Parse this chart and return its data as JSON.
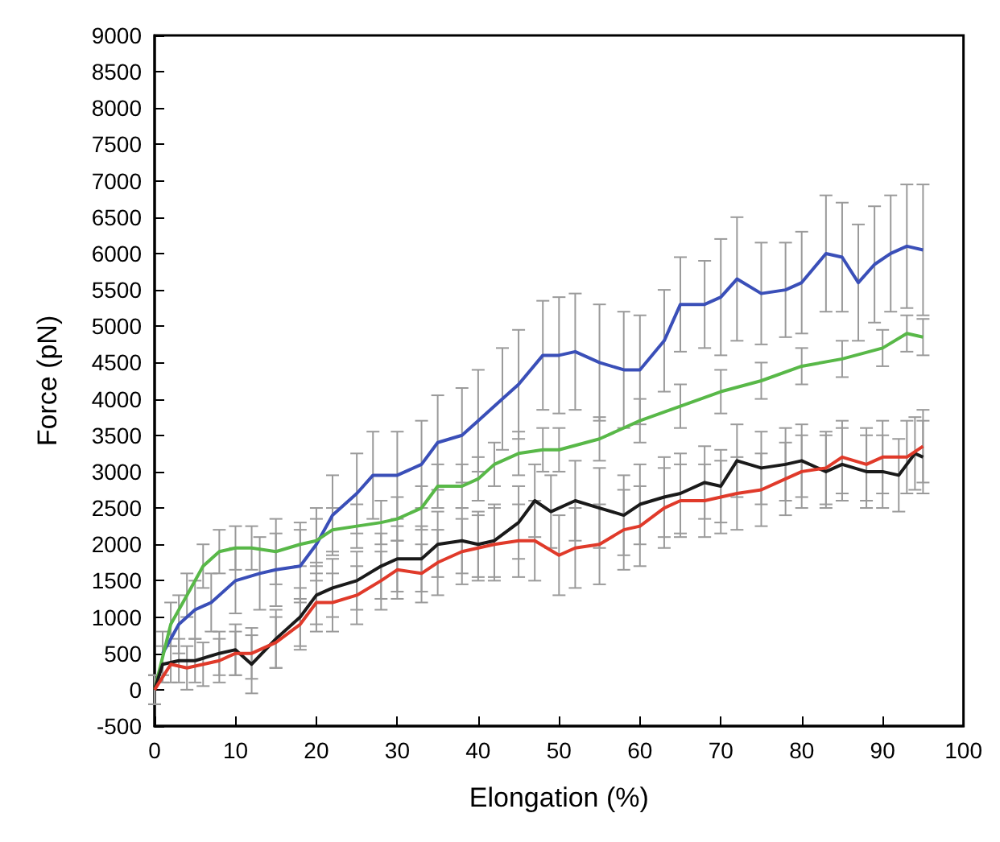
{
  "chart_data": {
    "type": "line",
    "xlabel": "Elongation (%)",
    "ylabel": "Force (pN)",
    "xlim": [
      0,
      100
    ],
    "ylim": [
      -500,
      9000
    ],
    "xticks": [
      0,
      10,
      20,
      30,
      40,
      50,
      60,
      70,
      80,
      90,
      100
    ],
    "yticks": [
      -500,
      0,
      500,
      1000,
      1500,
      2000,
      2500,
      3000,
      3500,
      4000,
      4500,
      5000,
      5500,
      6000,
      6500,
      7000,
      7500,
      8000,
      8500,
      9000
    ],
    "grid": false,
    "marker": "none",
    "line_style": "solid",
    "series": [
      {
        "color": "#3a4fb8",
        "x": [
          1,
          3,
          5,
          7,
          10,
          13,
          15,
          18,
          20,
          22,
          25,
          27,
          30,
          33,
          35,
          38,
          40,
          43,
          45,
          48,
          50,
          52,
          55,
          58,
          60,
          63,
          65,
          68,
          70,
          72,
          75,
          78,
          80,
          83,
          85,
          87,
          89,
          91,
          93,
          95
        ],
        "values": [
          500,
          900,
          1100,
          1200,
          1500,
          1600,
          1650,
          1700,
          2000,
          2400,
          2700,
          2950,
          2950,
          3100,
          3400,
          3500,
          3700,
          4000,
          4200,
          4600,
          4600,
          4650,
          4500,
          4400,
          4400,
          4800,
          5300,
          5300,
          5400,
          5650,
          5450,
          5500,
          5600,
          6000,
          5950,
          5600,
          5850,
          6000,
          6100,
          6050
        ],
        "errors": [
          300,
          400,
          400,
          400,
          450,
          500,
          500,
          500,
          500,
          550,
          550,
          600,
          600,
          600,
          650,
          650,
          700,
          700,
          750,
          750,
          800,
          800,
          800,
          800,
          750,
          700,
          650,
          600,
          800,
          850,
          700,
          650,
          700,
          800,
          750,
          800,
          800,
          800,
          850,
          900
        ]
      },
      {
        "color": "#58b848",
        "x": [
          0,
          2,
          4,
          6,
          8,
          10,
          12,
          15,
          18,
          20,
          22,
          25,
          28,
          30,
          33,
          35,
          38,
          40,
          42,
          45,
          48,
          50,
          55,
          60,
          65,
          70,
          75,
          80,
          85,
          90,
          93,
          95
        ],
        "values": [
          0,
          900,
          1300,
          1700,
          1900,
          1950,
          1950,
          1900,
          2000,
          2050,
          2200,
          2250,
          2300,
          2350,
          2500,
          2800,
          2800,
          2900,
          3100,
          3250,
          3300,
          3300,
          3450,
          3700,
          3900,
          4100,
          4250,
          4450,
          4550,
          4700,
          4900,
          4850
        ],
        "errors": [
          200,
          300,
          300,
          300,
          300,
          300,
          300,
          450,
          300,
          300,
          300,
          300,
          300,
          300,
          300,
          300,
          300,
          300,
          300,
          300,
          300,
          300,
          300,
          300,
          300,
          300,
          250,
          250,
          250,
          250,
          250,
          250
        ]
      },
      {
        "color": "#1a1a1a",
        "x": [
          0,
          1,
          3,
          5,
          8,
          10,
          12,
          15,
          18,
          20,
          22,
          25,
          28,
          30,
          33,
          35,
          38,
          40,
          42,
          45,
          47,
          49,
          52,
          55,
          58,
          60,
          63,
          65,
          68,
          70,
          72,
          75,
          78,
          80,
          83,
          85,
          88,
          90,
          92,
          94,
          95
        ],
        "values": [
          0,
          350,
          400,
          400,
          500,
          550,
          350,
          700,
          1000,
          1300,
          1400,
          1500,
          1700,
          1800,
          1800,
          2000,
          2050,
          2000,
          2050,
          2300,
          2600,
          2450,
          2600,
          2500,
          2400,
          2550,
          2650,
          2700,
          2850,
          2800,
          3150,
          3050,
          3100,
          3150,
          3000,
          3100,
          3000,
          3000,
          2950,
          3250,
          3200
        ],
        "errors": [
          200,
          250,
          300,
          300,
          300,
          350,
          400,
          400,
          400,
          400,
          400,
          400,
          450,
          450,
          450,
          450,
          450,
          450,
          500,
          500,
          500,
          500,
          550,
          550,
          550,
          550,
          550,
          550,
          500,
          500,
          500,
          500,
          500,
          500,
          500,
          500,
          500,
          500,
          500,
          500,
          500
        ]
      },
      {
        "color": "#e03a2a",
        "x": [
          0,
          2,
          4,
          6,
          8,
          10,
          12,
          15,
          18,
          20,
          22,
          25,
          28,
          30,
          33,
          35,
          38,
          40,
          42,
          45,
          47,
          50,
          52,
          55,
          58,
          60,
          63,
          65,
          68,
          70,
          72,
          75,
          78,
          80,
          83,
          85,
          88,
          90,
          93,
          95
        ],
        "values": [
          0,
          350,
          300,
          350,
          400,
          500,
          500,
          650,
          900,
          1200,
          1200,
          1300,
          1500,
          1650,
          1600,
          1750,
          1900,
          1950,
          2000,
          2050,
          2050,
          1850,
          1950,
          2000,
          2200,
          2250,
          2500,
          2600,
          2600,
          2650,
          2700,
          2750,
          2900,
          3000,
          3050,
          3200,
          3100,
          3200,
          3200,
          3350
        ],
        "errors": [
          200,
          250,
          300,
          300,
          300,
          300,
          350,
          350,
          350,
          400,
          400,
          400,
          400,
          400,
          400,
          450,
          450,
          450,
          500,
          500,
          550,
          550,
          550,
          550,
          550,
          550,
          550,
          500,
          500,
          500,
          500,
          500,
          500,
          500,
          500,
          500,
          500,
          500,
          500,
          500
        ]
      }
    ]
  }
}
